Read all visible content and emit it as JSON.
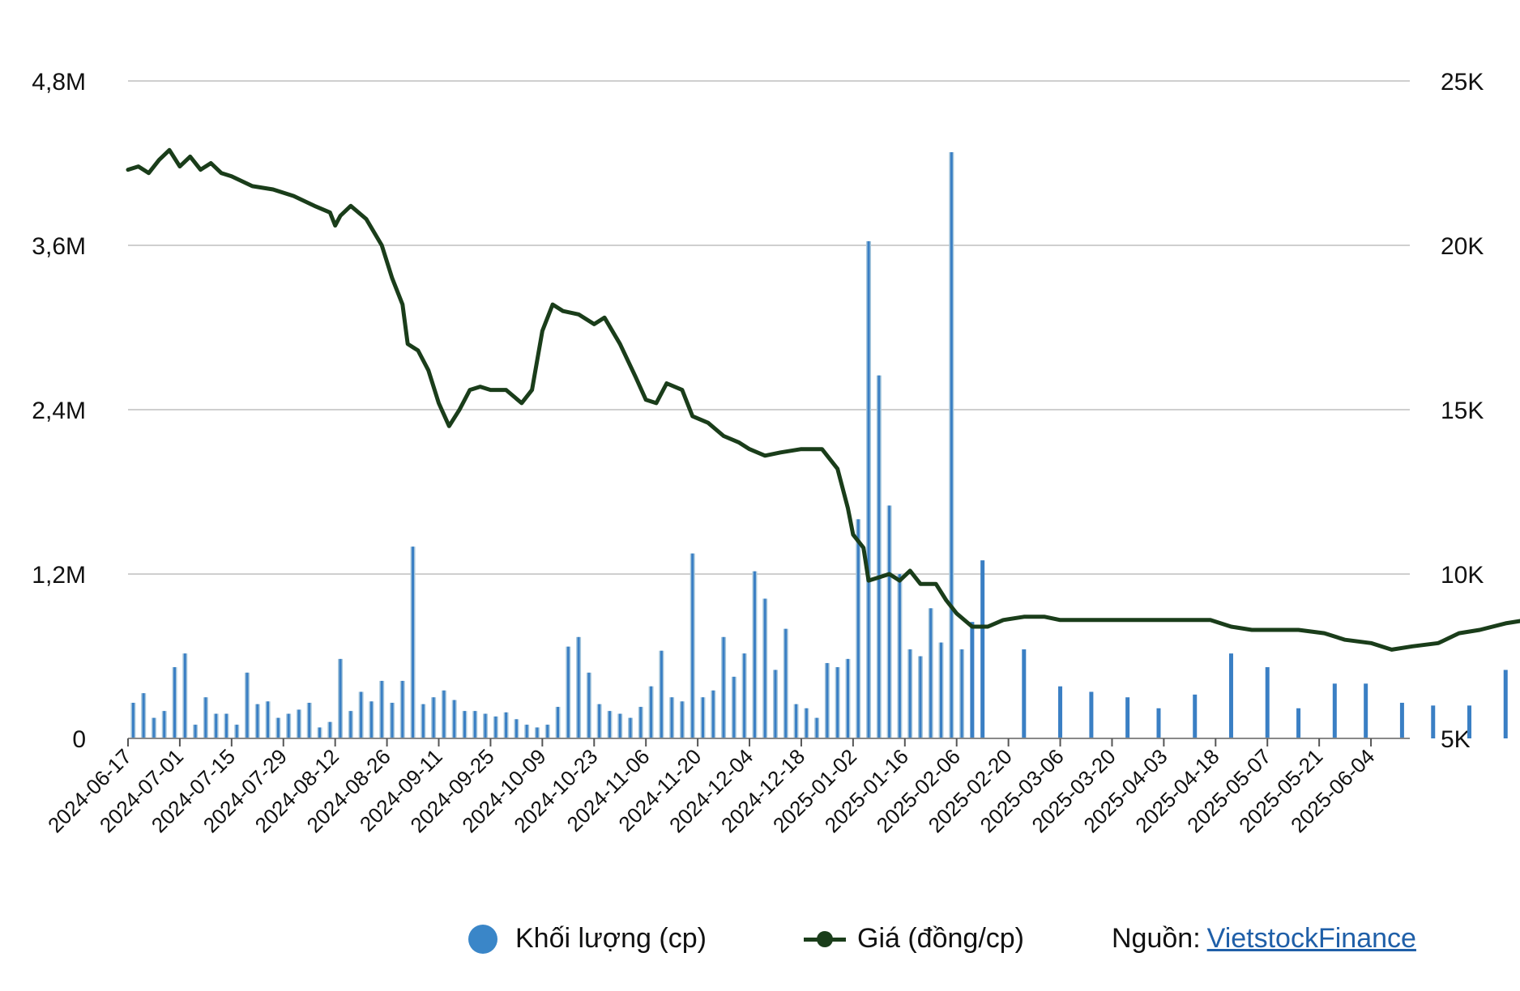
{
  "chart_data": {
    "type": "bar+line",
    "title": "",
    "y_left": {
      "ticks": [
        "0",
        "1,2M",
        "2,4M",
        "3,6M",
        "4,8M"
      ],
      "range": [
        0,
        4800000
      ]
    },
    "y_right": {
      "ticks": [
        "5K",
        "10K",
        "15K",
        "20K",
        "25K"
      ],
      "range": [
        5000,
        25000
      ]
    },
    "x_ticks": [
      "2024-06-17",
      "2024-07-01",
      "2024-07-15",
      "2024-07-29",
      "2024-08-12",
      "2024-08-26",
      "2024-09-11",
      "2024-09-25",
      "2024-10-09",
      "2024-10-23",
      "2024-11-06",
      "2024-11-20",
      "2024-12-04",
      "2024-12-18",
      "2025-01-02",
      "2025-01-16",
      "2025-02-06",
      "2025-02-20",
      "2025-03-06",
      "2025-03-20",
      "2025-04-03",
      "2025-04-18",
      "2025-05-07",
      "2025-05-21",
      "2025-06-04"
    ],
    "grid": true,
    "legend_position": "bottom",
    "colors": {
      "volume": "#3a7fc4",
      "volume_light": "#a8c8dc",
      "price": "#1a3d1a",
      "grid": "#cfcfcf"
    },
    "series": [
      {
        "name": "Khối lượng (cp)",
        "kind": "bar",
        "axis": "left",
        "points": [
          [
            0.1,
            0.26
          ],
          [
            0.3,
            0.33
          ],
          [
            0.5,
            0.15
          ],
          [
            0.7,
            0.2
          ],
          [
            0.9,
            0.52
          ],
          [
            1.1,
            0.62
          ],
          [
            1.3,
            0.1
          ],
          [
            1.5,
            0.3
          ],
          [
            1.7,
            0.18
          ],
          [
            1.9,
            0.18
          ],
          [
            2.1,
            0.1
          ],
          [
            2.3,
            0.48
          ],
          [
            2.5,
            0.25
          ],
          [
            2.7,
            0.27
          ],
          [
            2.9,
            0.15
          ],
          [
            3.1,
            0.18
          ],
          [
            3.3,
            0.21
          ],
          [
            3.5,
            0.26
          ],
          [
            3.7,
            0.08
          ],
          [
            3.9,
            0.12
          ],
          [
            4.1,
            0.58
          ],
          [
            4.3,
            0.2
          ],
          [
            4.5,
            0.34
          ],
          [
            4.7,
            0.27
          ],
          [
            4.9,
            0.42
          ],
          [
            5.1,
            0.26
          ],
          [
            5.3,
            0.42
          ],
          [
            5.5,
            1.4
          ],
          [
            5.7,
            0.25
          ],
          [
            5.9,
            0.3
          ],
          [
            6.1,
            0.35
          ],
          [
            6.3,
            0.28
          ],
          [
            6.5,
            0.2
          ],
          [
            6.7,
            0.2
          ],
          [
            6.9,
            0.18
          ],
          [
            7.1,
            0.16
          ],
          [
            7.3,
            0.19
          ],
          [
            7.5,
            0.14
          ],
          [
            7.7,
            0.1
          ],
          [
            7.9,
            0.08
          ],
          [
            8.1,
            0.1
          ],
          [
            8.3,
            0.23
          ],
          [
            8.5,
            0.67
          ],
          [
            8.7,
            0.74
          ],
          [
            8.9,
            0.48
          ],
          [
            9.1,
            0.25
          ],
          [
            9.3,
            0.2
          ],
          [
            9.5,
            0.18
          ],
          [
            9.7,
            0.15
          ],
          [
            9.9,
            0.23
          ],
          [
            10.1,
            0.38
          ],
          [
            10.3,
            0.64
          ],
          [
            10.5,
            0.3
          ],
          [
            10.7,
            0.27
          ],
          [
            10.9,
            1.35
          ],
          [
            11.1,
            0.3
          ],
          [
            11.3,
            0.35
          ],
          [
            11.5,
            0.74
          ],
          [
            11.7,
            0.45
          ],
          [
            11.9,
            0.62
          ],
          [
            12.1,
            1.22
          ],
          [
            12.3,
            1.02
          ],
          [
            12.5,
            0.5
          ],
          [
            12.7,
            0.8
          ],
          [
            12.9,
            0.25
          ],
          [
            13.1,
            0.22
          ],
          [
            13.3,
            0.15
          ],
          [
            13.5,
            0.55
          ],
          [
            13.7,
            0.52
          ],
          [
            13.9,
            0.58
          ],
          [
            14.1,
            1.6
          ],
          [
            14.3,
            3.63
          ],
          [
            14.5,
            2.65
          ],
          [
            14.7,
            1.7
          ],
          [
            14.9,
            1.2
          ],
          [
            15.1,
            0.65
          ],
          [
            15.3,
            0.6
          ],
          [
            15.5,
            0.95
          ],
          [
            15.7,
            0.7
          ],
          [
            15.9,
            4.28
          ],
          [
            16.1,
            0.65
          ],
          [
            16.3,
            0.85
          ],
          [
            16.5,
            1.3
          ],
          [
            17.3,
            0.65
          ],
          [
            18.0,
            0.38
          ],
          [
            18.6,
            0.34
          ],
          [
            19.3,
            0.3
          ],
          [
            19.9,
            0.22
          ],
          [
            20.6,
            0.32
          ],
          [
            21.3,
            0.62
          ],
          [
            22.0,
            0.52
          ],
          [
            22.6,
            0.22
          ],
          [
            23.3,
            0.4
          ],
          [
            23.9,
            0.4
          ],
          [
            24.6,
            0.26
          ],
          [
            25.2,
            0.24
          ],
          [
            25.9,
            0.24
          ],
          [
            26.6,
            0.5
          ],
          [
            27.2,
            0.4
          ],
          [
            27.9,
            0.5
          ],
          [
            28.6,
            0.32
          ],
          [
            29.2,
            0.26
          ],
          [
            29.9,
            0.22
          ],
          [
            30.6,
            0.97
          ],
          [
            31.2,
            0.5
          ],
          [
            31.9,
            0.53
          ],
          [
            32.6,
            0.33
          ],
          [
            33.2,
            0.17
          ],
          [
            33.9,
            0.47
          ],
          [
            34.6,
            0.2
          ],
          [
            35.2,
            0.76
          ],
          [
            35.9,
            0.56
          ],
          [
            36.5,
            0.58
          ]
        ]
      },
      {
        "name": "Giá (đồng/cp)",
        "kind": "line",
        "axis": "right",
        "points": [
          [
            0.0,
            22.3
          ],
          [
            0.2,
            22.4
          ],
          [
            0.4,
            22.2
          ],
          [
            0.6,
            22.6
          ],
          [
            0.8,
            22.9
          ],
          [
            1.0,
            22.4
          ],
          [
            1.2,
            22.7
          ],
          [
            1.4,
            22.3
          ],
          [
            1.6,
            22.5
          ],
          [
            1.8,
            22.2
          ],
          [
            2.0,
            22.1
          ],
          [
            2.4,
            21.8
          ],
          [
            2.8,
            21.7
          ],
          [
            3.2,
            21.5
          ],
          [
            3.6,
            21.2
          ],
          [
            3.9,
            21.0
          ],
          [
            4.0,
            20.6
          ],
          [
            4.1,
            20.9
          ],
          [
            4.3,
            21.2
          ],
          [
            4.6,
            20.8
          ],
          [
            4.9,
            20.0
          ],
          [
            5.1,
            19.0
          ],
          [
            5.3,
            18.2
          ],
          [
            5.4,
            17.0
          ],
          [
            5.6,
            16.8
          ],
          [
            5.8,
            16.2
          ],
          [
            6.0,
            15.2
          ],
          [
            6.2,
            14.5
          ],
          [
            6.4,
            15.0
          ],
          [
            6.6,
            15.6
          ],
          [
            6.8,
            15.7
          ],
          [
            7.0,
            15.6
          ],
          [
            7.3,
            15.6
          ],
          [
            7.6,
            15.2
          ],
          [
            7.8,
            15.6
          ],
          [
            8.0,
            17.4
          ],
          [
            8.2,
            18.2
          ],
          [
            8.4,
            18.0
          ],
          [
            8.7,
            17.9
          ],
          [
            9.0,
            17.6
          ],
          [
            9.2,
            17.8
          ],
          [
            9.5,
            17.0
          ],
          [
            9.8,
            16.0
          ],
          [
            10.0,
            15.3
          ],
          [
            10.2,
            15.2
          ],
          [
            10.4,
            15.8
          ],
          [
            10.7,
            15.6
          ],
          [
            10.9,
            14.8
          ],
          [
            11.2,
            14.6
          ],
          [
            11.5,
            14.2
          ],
          [
            11.8,
            14.0
          ],
          [
            12.0,
            13.8
          ],
          [
            12.3,
            13.6
          ],
          [
            12.6,
            13.7
          ],
          [
            13.0,
            13.8
          ],
          [
            13.4,
            13.8
          ],
          [
            13.7,
            13.2
          ],
          [
            13.9,
            12.0
          ],
          [
            14.0,
            11.2
          ],
          [
            14.2,
            10.8
          ],
          [
            14.3,
            9.8
          ],
          [
            14.5,
            9.9
          ],
          [
            14.7,
            10.0
          ],
          [
            14.9,
            9.8
          ],
          [
            15.1,
            10.1
          ],
          [
            15.3,
            9.7
          ],
          [
            15.6,
            9.7
          ],
          [
            15.8,
            9.2
          ],
          [
            16.0,
            8.8
          ],
          [
            16.3,
            8.4
          ],
          [
            16.6,
            8.4
          ],
          [
            16.9,
            8.6
          ],
          [
            17.3,
            8.7
          ],
          [
            17.7,
            8.7
          ],
          [
            18.0,
            8.6
          ],
          [
            18.5,
            8.6
          ],
          [
            19.0,
            8.6
          ],
          [
            19.5,
            8.6
          ],
          [
            20.0,
            8.6
          ],
          [
            20.5,
            8.6
          ],
          [
            20.9,
            8.6
          ],
          [
            21.3,
            8.4
          ],
          [
            21.7,
            8.3
          ],
          [
            22.1,
            8.3
          ],
          [
            22.6,
            8.3
          ],
          [
            23.1,
            8.2
          ],
          [
            23.5,
            8.0
          ],
          [
            24.0,
            7.9
          ],
          [
            24.4,
            7.7
          ],
          [
            24.8,
            7.8
          ],
          [
            25.3,
            7.9
          ],
          [
            25.7,
            8.2
          ],
          [
            26.1,
            8.3
          ],
          [
            26.6,
            8.5
          ],
          [
            27.0,
            8.6
          ],
          [
            27.4,
            8.6
          ],
          [
            27.8,
            8.5
          ],
          [
            28.2,
            8.4
          ],
          [
            28.6,
            8.2
          ],
          [
            29.0,
            8.1
          ],
          [
            29.4,
            7.9
          ],
          [
            29.8,
            7.8
          ],
          [
            30.2,
            7.7
          ],
          [
            30.6,
            7.4
          ],
          [
            30.8,
            7.0
          ],
          [
            31.0,
            6.9
          ],
          [
            31.4,
            7.0
          ],
          [
            31.9,
            6.9
          ],
          [
            32.3,
            6.9
          ],
          [
            32.8,
            6.9
          ],
          [
            33.2,
            6.9
          ],
          [
            33.6,
            7.0
          ],
          [
            34.0,
            7.1
          ],
          [
            34.4,
            7.4
          ],
          [
            34.8,
            7.4
          ],
          [
            35.2,
            7.6
          ],
          [
            35.4,
            7.9
          ],
          [
            35.7,
            8.0
          ],
          [
            36.0,
            8.5
          ],
          [
            36.5,
            8.5
          ],
          [
            36.8,
            8.7
          ]
        ]
      }
    ]
  },
  "legend": {
    "volume_label": "Khối lượng (cp)",
    "price_label": "Giá (đồng/cp)",
    "source_prefix": "Nguồn:",
    "source_name": "VietstockFinance"
  }
}
